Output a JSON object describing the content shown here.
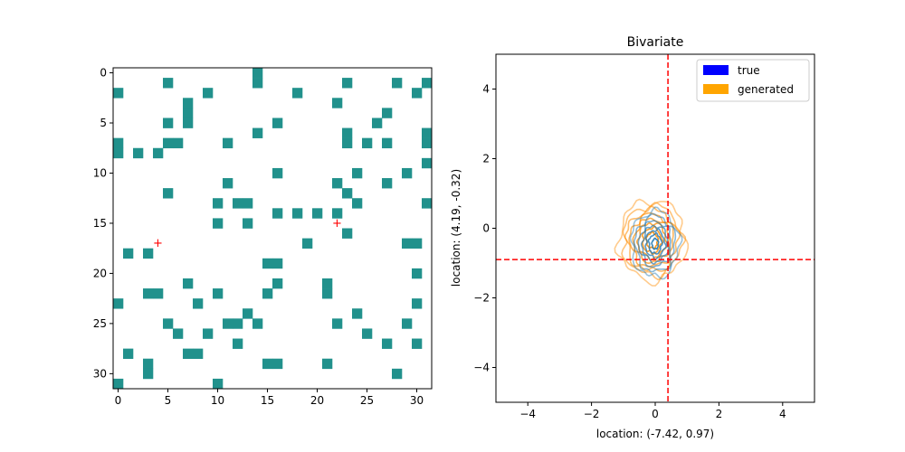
{
  "chart_data": [
    {
      "type": "heatmap",
      "title": "",
      "grid_size": 32,
      "xlim": [
        -0.5,
        31.5
      ],
      "ylim": [
        31.5,
        -0.5
      ],
      "xticks": [
        0,
        5,
        10,
        15,
        20,
        25,
        30
      ],
      "yticks": [
        0,
        5,
        10,
        15,
        20,
        25,
        30
      ],
      "cell_color": "#21918c",
      "cells": [
        [
          14,
          0
        ],
        [
          14,
          1
        ],
        [
          5,
          1
        ],
        [
          23,
          1
        ],
        [
          28,
          1
        ],
        [
          31,
          1
        ],
        [
          0,
          2
        ],
        [
          9,
          2
        ],
        [
          18,
          2
        ],
        [
          30,
          2
        ],
        [
          7,
          3
        ],
        [
          22,
          3
        ],
        [
          7,
          4
        ],
        [
          27,
          4
        ],
        [
          5,
          5
        ],
        [
          7,
          5
        ],
        [
          16,
          5
        ],
        [
          26,
          5
        ],
        [
          14,
          6
        ],
        [
          23,
          6
        ],
        [
          31,
          6
        ],
        [
          0,
          7
        ],
        [
          5,
          7
        ],
        [
          6,
          7
        ],
        [
          11,
          7
        ],
        [
          23,
          7
        ],
        [
          25,
          7
        ],
        [
          27,
          7
        ],
        [
          31,
          7
        ],
        [
          0,
          8
        ],
        [
          2,
          8
        ],
        [
          4,
          8
        ],
        [
          31,
          9
        ],
        [
          16,
          10
        ],
        [
          24,
          10
        ],
        [
          29,
          10
        ],
        [
          11,
          11
        ],
        [
          22,
          11
        ],
        [
          27,
          11
        ],
        [
          5,
          12
        ],
        [
          23,
          12
        ],
        [
          10,
          13
        ],
        [
          12,
          13
        ],
        [
          13,
          13
        ],
        [
          24,
          13
        ],
        [
          31,
          13
        ],
        [
          16,
          14
        ],
        [
          18,
          14
        ],
        [
          20,
          14
        ],
        [
          22,
          14
        ],
        [
          10,
          15
        ],
        [
          13,
          15
        ],
        [
          23,
          16
        ],
        [
          19,
          17
        ],
        [
          29,
          17
        ],
        [
          30,
          17
        ],
        [
          1,
          18
        ],
        [
          3,
          18
        ],
        [
          15,
          19
        ],
        [
          16,
          19
        ],
        [
          30,
          20
        ],
        [
          7,
          21
        ],
        [
          16,
          21
        ],
        [
          21,
          21
        ],
        [
          3,
          22
        ],
        [
          4,
          22
        ],
        [
          10,
          22
        ],
        [
          15,
          22
        ],
        [
          21,
          22
        ],
        [
          0,
          23
        ],
        [
          8,
          23
        ],
        [
          30,
          23
        ],
        [
          13,
          24
        ],
        [
          24,
          24
        ],
        [
          5,
          25
        ],
        [
          11,
          25
        ],
        [
          12,
          25
        ],
        [
          14,
          25
        ],
        [
          22,
          25
        ],
        [
          29,
          25
        ],
        [
          6,
          26
        ],
        [
          9,
          26
        ],
        [
          25,
          26
        ],
        [
          12,
          27
        ],
        [
          27,
          27
        ],
        [
          30,
          27
        ],
        [
          1,
          28
        ],
        [
          7,
          28
        ],
        [
          8,
          28
        ],
        [
          3,
          29
        ],
        [
          15,
          29
        ],
        [
          16,
          29
        ],
        [
          21,
          29
        ],
        [
          3,
          30
        ],
        [
          28,
          30
        ],
        [
          0,
          31
        ],
        [
          10,
          31
        ]
      ],
      "markers": [
        {
          "x": 4,
          "y": 17,
          "symbol": "+",
          "color": "#ff0000"
        },
        {
          "x": 22,
          "y": 15,
          "symbol": "+",
          "color": "#ff0000"
        }
      ]
    },
    {
      "type": "contour",
      "title": "Bivariate",
      "xlabel": "location: (-7.42, 0.97)",
      "ylabel": "location: (4.19, -0.32)",
      "xlim": [
        -5,
        5
      ],
      "ylim": [
        -5,
        5
      ],
      "xticks": [
        -4,
        -2,
        0,
        2,
        4
      ],
      "yticks": [
        -4,
        -2,
        0,
        2,
        4
      ],
      "series": [
        {
          "name": "true",
          "legend_color": "#0000ff",
          "line_color": "#1f77b4",
          "center": [
            0.0,
            -0.45
          ],
          "radii": [
            [
              0.75,
              0.95
            ],
            [
              0.62,
              0.8
            ],
            [
              0.5,
              0.65
            ],
            [
              0.4,
              0.52
            ],
            [
              0.3,
              0.4
            ],
            [
              0.2,
              0.28
            ],
            [
              0.1,
              0.15
            ]
          ]
        },
        {
          "name": "generated",
          "legend_color": "#ffa500",
          "line_color": "#ff8c00",
          "center": [
            -0.1,
            -0.35
          ],
          "radii": [
            [
              1.05,
              1.15
            ],
            [
              0.92,
              1.0
            ],
            [
              0.8,
              0.88
            ],
            [
              0.68,
              0.75
            ],
            [
              0.56,
              0.62
            ],
            [
              0.44,
              0.5
            ],
            [
              0.3,
              0.36
            ],
            [
              0.18,
              0.22
            ]
          ]
        }
      ],
      "reference_lines": {
        "vertical_x": 0.4,
        "horizontal_y": -0.9,
        "color": "#ff0000",
        "style": "dashed"
      }
    }
  ]
}
